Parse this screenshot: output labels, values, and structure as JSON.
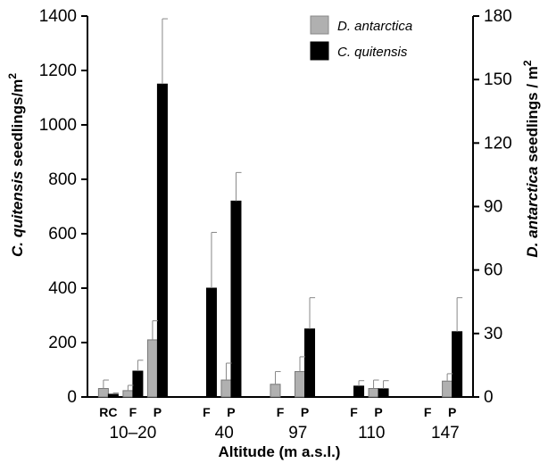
{
  "chart_data": {
    "type": "bar",
    "xlabel": "Altitude (m a.s.l.)",
    "ylabel_left": {
      "italic": "C. quitensis",
      "rest": " seedlings/m",
      "sup": "2"
    },
    "ylabel_right": {
      "italic": "D. antarctica",
      "rest": " seedlings / m",
      "sup": "2"
    },
    "y_left_ticks": [
      "0",
      "200",
      "400",
      "600",
      "800",
      "1000",
      "1200",
      "1400"
    ],
    "y_right_ticks": [
      "0",
      "30",
      "60",
      "90",
      "120",
      "150",
      "180"
    ],
    "ylim_left": [
      0,
      1400
    ],
    "ylim_right": [
      0,
      180
    ],
    "groups": [
      "10–20",
      "40",
      "97",
      "110",
      "147"
    ],
    "categories": [
      {
        "label": "RC",
        "group": 0
      },
      {
        "label": "F",
        "group": 0
      },
      {
        "label": "P",
        "group": 0
      },
      {
        "label": "F",
        "group": 1
      },
      {
        "label": "P",
        "group": 1
      },
      {
        "label": "F",
        "group": 2
      },
      {
        "label": "P",
        "group": 2
      },
      {
        "label": "F",
        "group": 3
      },
      {
        "label": "P",
        "group": 3
      },
      {
        "label": "F",
        "group": 4
      },
      {
        "label": "P",
        "group": 4
      }
    ],
    "series": [
      {
        "name": "D. antarctica",
        "axis": "right",
        "color": "#b0b0b0",
        "values": [
          4,
          3,
          27,
          0,
          8,
          6,
          12,
          0,
          4,
          0,
          7.5
        ],
        "errors": [
          4,
          2.5,
          9,
          0,
          8,
          6,
          7,
          0,
          4,
          0,
          3.5
        ]
      },
      {
        "name": "C. quitensis",
        "axis": "left",
        "color": "#000000",
        "values": [
          10,
          95,
          1150,
          400,
          720,
          0,
          250,
          40,
          30,
          0,
          240
        ],
        "errors": [
          5,
          40,
          240,
          205,
          105,
          0,
          115,
          20,
          30,
          0,
          125
        ]
      }
    ],
    "legend_position": "top-right",
    "grid": false
  }
}
